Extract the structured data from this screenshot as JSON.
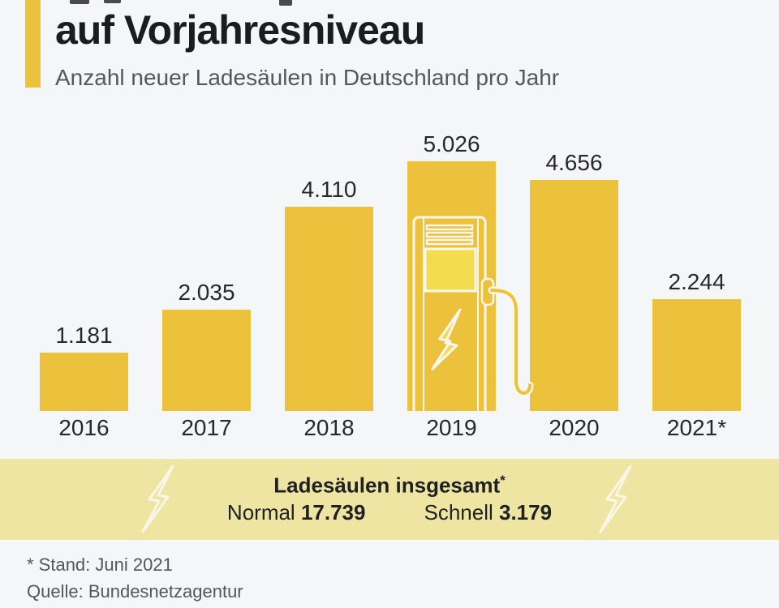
{
  "header": {
    "title": "auf Vorjahresniveau",
    "subtitle": "Anzahl neuer Ladesäulen in Deutschland pro Jahr"
  },
  "chart_data": {
    "type": "bar",
    "categories": [
      "2016",
      "2017",
      "2018",
      "2019",
      "2020",
      "2021*"
    ],
    "values": [
      1181,
      2035,
      4110,
      5026,
      4656,
      2244
    ],
    "value_labels": [
      "1.181",
      "2.035",
      "4.110",
      "5.026",
      "4.656",
      "2.244"
    ],
    "title": "Anzahl neuer Ladesäulen in Deutschland pro Jahr",
    "xlabel": "",
    "ylabel": "",
    "ylim": [
      0,
      5026
    ],
    "grid": false,
    "legend": false,
    "annotation": "charging-station illustration drawn over 2019 bar"
  },
  "totals_band": {
    "heading": "Ladesäulen insgesamt",
    "heading_superscript": "*",
    "items": [
      {
        "label": "Normal",
        "value": "17.739"
      },
      {
        "label": "Schnell",
        "value": "3.179"
      }
    ]
  },
  "footer": {
    "note": "* Stand: Juni 2021",
    "source": "Quelle: Bundesnetzagentur"
  },
  "colors": {
    "background": "#F4F6F8",
    "bar": "#ECC23C",
    "accent": "#ECC23C",
    "band_background": "#EFE5A3",
    "screen_fill": "#F3DC4E",
    "bolt_fill": "#F2D85A",
    "outline_white": "#FBF7EC",
    "title_text": "#1B1C1E",
    "subtitle_text": "#55575B",
    "label_text": "#26282B",
    "footer_text": "#53565A"
  }
}
